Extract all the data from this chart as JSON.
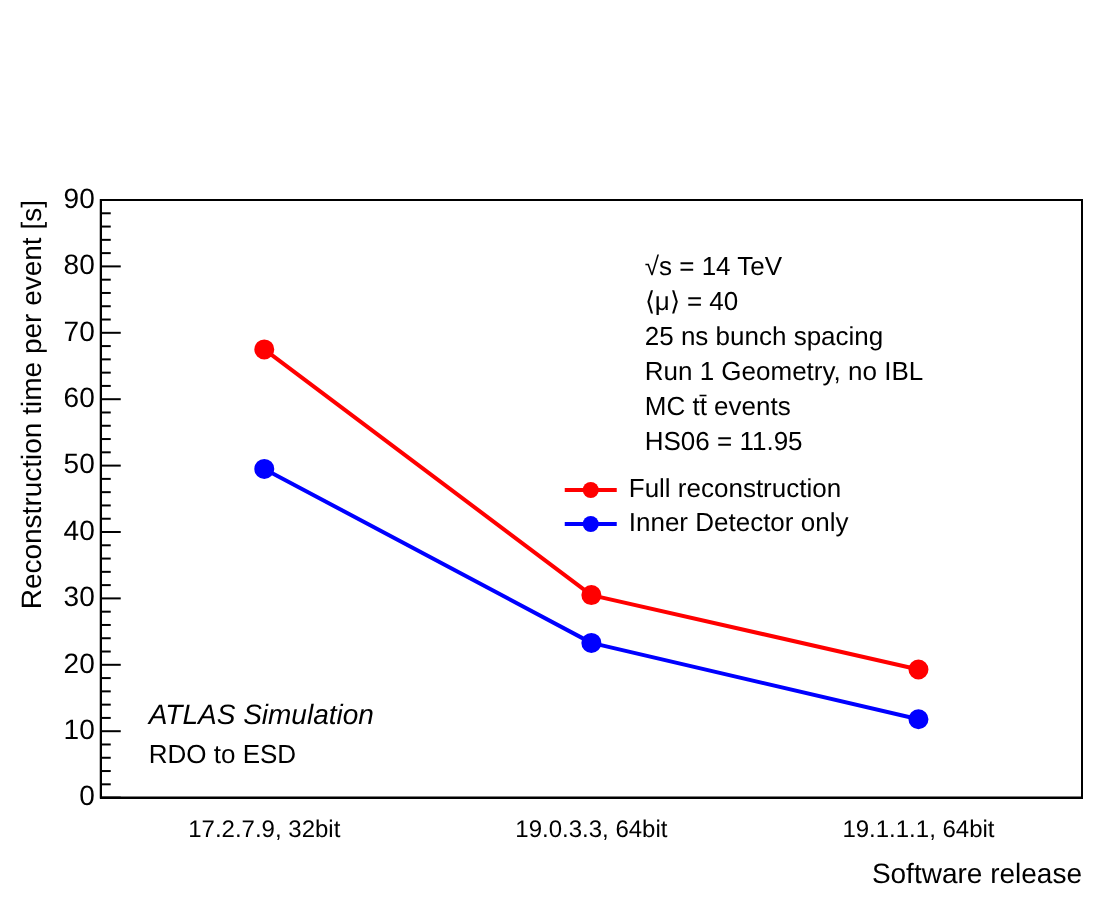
{
  "chart_data": {
    "type": "line",
    "xlabel": "Software release",
    "ylabel": "Reconstruction time per event [s]",
    "categories": [
      "17.2.7.9, 32bit",
      "19.0.3.3, 64bit",
      "19.1.1.1, 64bit"
    ],
    "series": [
      {
        "name": "Full reconstruction",
        "color": "#ff0000",
        "values": [
          67.5,
          30.5,
          19.3
        ]
      },
      {
        "name": "Inner Detector only",
        "color": "#0000ff",
        "values": [
          49.5,
          23.3,
          11.8
        ]
      }
    ],
    "ylim": [
      0,
      90
    ],
    "yticks": [
      0,
      10,
      20,
      30,
      40,
      50,
      60,
      70,
      80,
      90
    ],
    "grid": false,
    "legend": "right",
    "marker": "circle",
    "line_style": "solid",
    "annotations": [
      "√s = 14 TeV",
      "⟨μ⟩ = 40",
      "25 ns bunch spacing",
      "Run 1 Geometry, no IBL",
      "MC tt̄ events",
      "HS06 = 11.95",
      "ATLAS Simulation",
      "RDO to ESD"
    ]
  }
}
